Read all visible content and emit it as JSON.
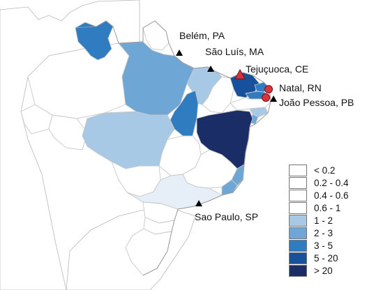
{
  "legend": {
    "classes": [
      {
        "label": "< 0.2",
        "color": "#ffffff"
      },
      {
        "label": "0.2 - 0.4",
        "color": "#ffffff"
      },
      {
        "label": "0.4 - 0.6",
        "color": "#ffffff"
      },
      {
        "label": "0.6 - 1",
        "color": "#ffffff"
      },
      {
        "label": "1 - 2",
        "color": "#a8c9e6"
      },
      {
        "label": "2 - 3",
        "color": "#6ea6d6"
      },
      {
        "label": "3 - 5",
        "color": "#2f7cc0"
      },
      {
        "label": "5 - 20",
        "color": "#17519c"
      },
      {
        "label": "> 20",
        "color": "#1b2d66"
      }
    ]
  },
  "cities": [
    {
      "name": "Belém, PA",
      "marker": "triangle",
      "color": "#000000"
    },
    {
      "name": "São Luís, MA",
      "marker": "triangle",
      "color": "#000000"
    },
    {
      "name": "Tejuçuoca, CE",
      "marker": "triangle",
      "color": "#d8343a"
    },
    {
      "name": "Natal, RN",
      "marker": "circle",
      "color": "#d8343a"
    },
    {
      "name": "João Pessoa, PB",
      "marker": "triangle",
      "color": "#000000"
    },
    {
      "name": "Sao Paulo, SP",
      "marker": "triangle",
      "color": "#000000"
    }
  ]
}
